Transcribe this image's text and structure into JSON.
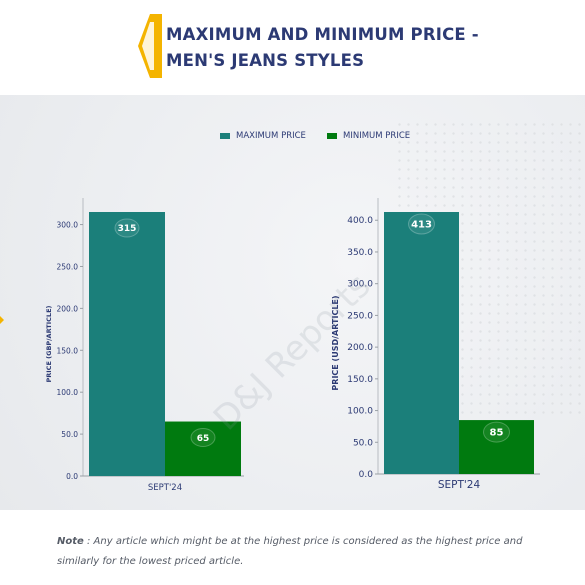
{
  "title": {
    "line1": "MAXIMUM AND MINIMUM PRICE -",
    "line2": "MEN'S JEANS STYLES"
  },
  "watermark": "D&J Reports",
  "note": {
    "label": "Note",
    "text": " : Any article which might be at the highest price is considered as the highest price and similarly for the lowest priced article."
  },
  "colors": {
    "max": "#1b7f7a",
    "min": "#007a0f",
    "title": "#2c3a74",
    "accent": "#f4b400"
  },
  "chart_data": [
    {
      "type": "bar",
      "categories": [
        "SEPT'24"
      ],
      "series": [
        {
          "name": "MAXIMUM PRICE",
          "values": [
            315
          ]
        },
        {
          "name": "MINIMUM PRICE",
          "values": [
            65
          ]
        }
      ],
      "title": "",
      "xlabel": "",
      "ylabel": "PRICE (GBP/ARTICLE)",
      "ylim": [
        0,
        315
      ],
      "yticks": [
        "0.0",
        "50.0",
        "100.0",
        "150.0",
        "200.0",
        "250.0",
        "300.0"
      ],
      "legend": "top-center"
    },
    {
      "type": "bar",
      "categories": [
        "SEPT'24"
      ],
      "series": [
        {
          "name": "MAXIMUM PRICE",
          "values": [
            413
          ]
        },
        {
          "name": "MINIMUM PRICE",
          "values": [
            85
          ]
        }
      ],
      "title": "",
      "xlabel": "",
      "ylabel": "PRICE (USD/ARTICLE)",
      "ylim": [
        0,
        413
      ],
      "yticks": [
        "0.0",
        "50.0",
        "100.0",
        "150.0",
        "200.0",
        "250.0",
        "300.0",
        "350.0",
        "400.0"
      ],
      "legend": "top-center"
    }
  ]
}
